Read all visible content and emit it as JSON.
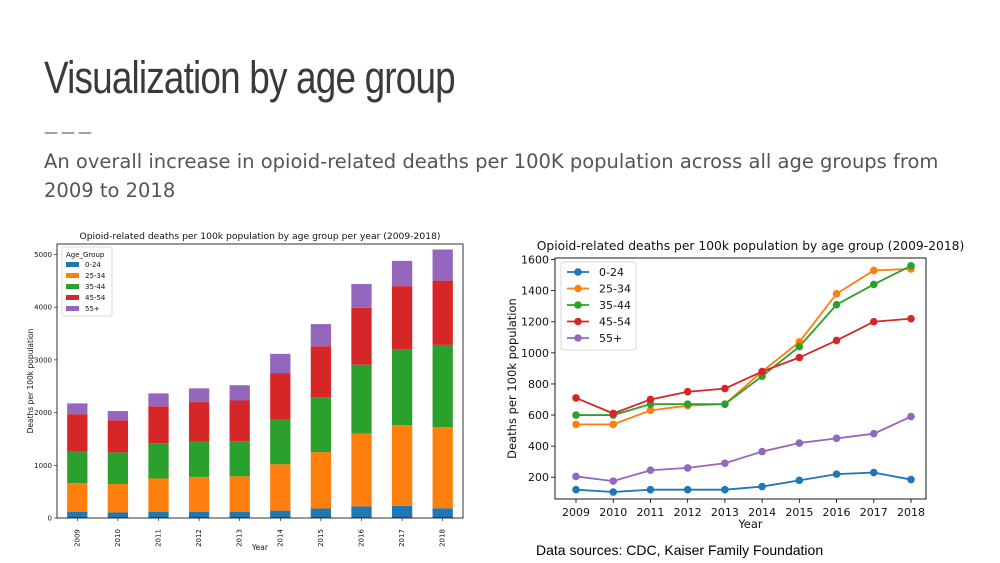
{
  "slide": {
    "title": "Visualization by age group",
    "rule": "———",
    "subtitle": "An overall increase in opioid-related deaths per 100K population across all age groups from 2009 to 2018",
    "sources": "Data sources: CDC, Kaiser Family Foundation"
  },
  "colors": {
    "0-24": "#1f77b4",
    "25-34": "#ff7f0e",
    "35-44": "#2ca02c",
    "45-54": "#d62728",
    "55+": "#9467bd"
  },
  "chart_data": [
    {
      "type": "bar",
      "stacked": true,
      "title": "Opioid-related deaths per 100k population by age group per year (2009-2018)",
      "xlabel": "Year",
      "ylabel": "Deaths per 100k population",
      "ylim": [
        0,
        5200
      ],
      "yticks": [
        0,
        1000,
        2000,
        3000,
        4000,
        5000
      ],
      "legend_title": "Age_Group",
      "legend_position": "top-left",
      "categories": [
        "2009",
        "2010",
        "2011",
        "2012",
        "2013",
        "2014",
        "2015",
        "2016",
        "2017",
        "2018"
      ],
      "series": [
        {
          "name": "0-24",
          "values": [
            120,
            105,
            120,
            120,
            120,
            140,
            180,
            220,
            230,
            185
          ]
        },
        {
          "name": "25-34",
          "values": [
            540,
            540,
            630,
            660,
            670,
            880,
            1070,
            1380,
            1530,
            1540
          ]
        },
        {
          "name": "35-44",
          "values": [
            600,
            600,
            670,
            670,
            670,
            850,
            1040,
            1310,
            1440,
            1560
          ]
        },
        {
          "name": "45-54",
          "values": [
            710,
            610,
            700,
            750,
            770,
            880,
            970,
            1080,
            1200,
            1220
          ]
        },
        {
          "name": "55+",
          "values": [
            205,
            175,
            245,
            260,
            290,
            365,
            420,
            450,
            480,
            590
          ]
        }
      ]
    },
    {
      "type": "line",
      "title": "Opioid-related deaths per 100k population by age group (2009-2018)",
      "xlabel": "Year",
      "ylabel": "Deaths per 100k population",
      "ylim": [
        60,
        1610
      ],
      "yticks": [
        200,
        400,
        600,
        800,
        1000,
        1200,
        1400,
        1600
      ],
      "legend_position": "top-left",
      "categories": [
        "2009",
        "2010",
        "2011",
        "2012",
        "2013",
        "2014",
        "2015",
        "2016",
        "2017",
        "2018"
      ],
      "series": [
        {
          "name": "0-24",
          "values": [
            120,
            105,
            120,
            120,
            120,
            140,
            180,
            220,
            230,
            185
          ]
        },
        {
          "name": "25-34",
          "values": [
            540,
            540,
            630,
            660,
            670,
            880,
            1070,
            1380,
            1530,
            1540
          ]
        },
        {
          "name": "35-44",
          "values": [
            600,
            600,
            670,
            670,
            670,
            850,
            1040,
            1310,
            1440,
            1560
          ]
        },
        {
          "name": "45-54",
          "values": [
            710,
            610,
            700,
            750,
            770,
            880,
            970,
            1080,
            1200,
            1220
          ]
        },
        {
          "name": "55+",
          "values": [
            205,
            175,
            245,
            260,
            290,
            365,
            420,
            450,
            480,
            590
          ]
        }
      ]
    }
  ]
}
